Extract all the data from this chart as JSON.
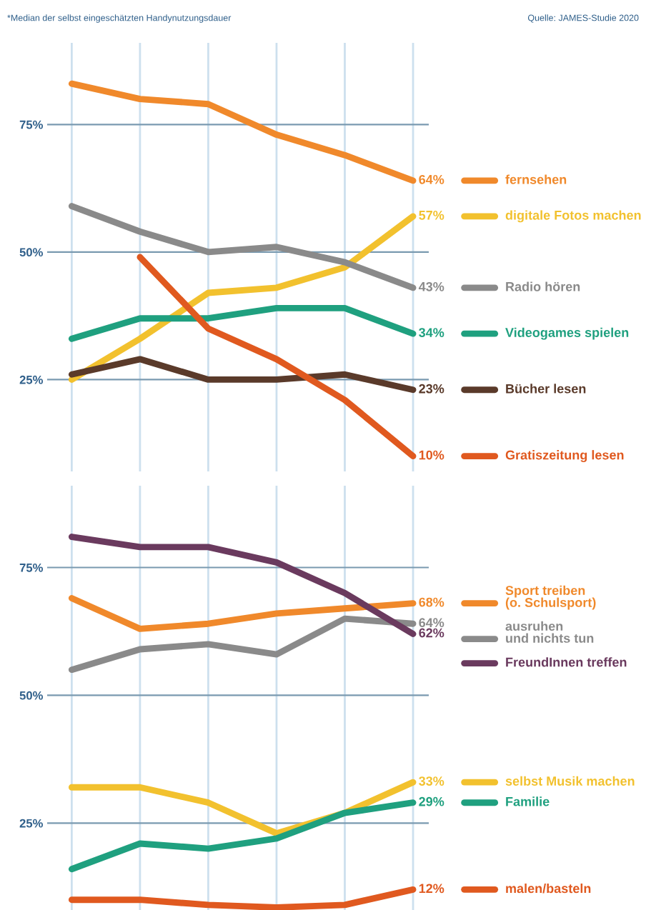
{
  "chart_data": [
    {
      "type": "line",
      "annotations": [
        "*Median der selbst eingeschätzten Handynutzungsdauer",
        "Quelle: JAMES-Studie 2020"
      ],
      "categories": [
        null,
        null,
        null,
        null,
        null,
        null
      ],
      "ylim": [
        7,
        91
      ],
      "yticks": [
        {
          "value": 25,
          "label": "25%"
        },
        {
          "value": 50,
          "label": "50%"
        },
        {
          "value": 75,
          "label": "75%"
        }
      ],
      "grid": true,
      "tick_labels": "y",
      "legend": "right",
      "marker": "none",
      "line_style": "solid",
      "series": [
        {
          "name": "fernsehen",
          "color": "#f0892b",
          "values": [
            83,
            80,
            79,
            73,
            69,
            64
          ],
          "value_labels": [
            null,
            null,
            null,
            null,
            null,
            "64%"
          ]
        },
        {
          "name": "digitale Fotos machen",
          "color": "#f2c12e",
          "values": [
            25,
            33,
            42,
            43,
            47,
            57
          ],
          "value_labels": [
            null,
            null,
            null,
            null,
            null,
            "57%"
          ]
        },
        {
          "name": "Radio hören",
          "color": "#8a8a8a",
          "values": [
            59,
            54,
            50,
            51,
            48,
            43
          ],
          "value_labels": [
            null,
            null,
            null,
            null,
            null,
            "43%"
          ]
        },
        {
          "name": "Videogames spielen",
          "color": "#1fa07f",
          "values": [
            33,
            37,
            37,
            39,
            39,
            34
          ],
          "value_labels": [
            null,
            null,
            null,
            null,
            null,
            "34%"
          ]
        },
        {
          "name": "Bücher lesen",
          "color": "#5a3a2a",
          "values": [
            26,
            29,
            25,
            25,
            26,
            23
          ],
          "value_labels": [
            null,
            null,
            null,
            null,
            null,
            "23%"
          ]
        },
        {
          "name": "Gratiszeitung lesen",
          "color": "#e0591f",
          "values": [
            null,
            49,
            35,
            29,
            21,
            10
          ],
          "value_labels": [
            null,
            null,
            null,
            null,
            null,
            "10%"
          ]
        }
      ]
    },
    {
      "type": "line",
      "categories": [
        null,
        null,
        null,
        null,
        null,
        null
      ],
      "ylim": [
        8,
        91
      ],
      "yticks": [
        {
          "value": 25,
          "label": "25%"
        },
        {
          "value": 50,
          "label": "50%"
        },
        {
          "value": 75,
          "label": "75%"
        }
      ],
      "grid": true,
      "tick_labels": "y",
      "legend": "right",
      "marker": "none",
      "line_style": "solid",
      "series": [
        {
          "name": "Sport treiben\n(o. Schulsport)",
          "color": "#f0892b",
          "values": [
            69,
            63,
            64,
            66,
            67,
            68
          ],
          "value_labels": [
            null,
            null,
            null,
            null,
            null,
            "68%"
          ]
        },
        {
          "name": "ausruhen\nund nichts tun",
          "color": "#8a8a8a",
          "values": [
            55,
            59,
            60,
            58,
            65,
            64
          ],
          "value_labels": [
            null,
            null,
            null,
            null,
            null,
            "64%"
          ]
        },
        {
          "name": "FreundInnen treffen",
          "color": "#6a3a5e",
          "values": [
            81,
            79,
            79,
            76,
            70,
            62
          ],
          "value_labels": [
            null,
            null,
            null,
            null,
            null,
            "62%"
          ]
        },
        {
          "name": "selbst Musik machen",
          "color": "#f2c12e",
          "values": [
            32,
            32,
            29,
            23,
            27,
            33
          ],
          "value_labels": [
            null,
            null,
            null,
            null,
            null,
            "33%"
          ]
        },
        {
          "name": "Familie",
          "color": "#1fa07f",
          "values": [
            16,
            21,
            20,
            22,
            27,
            29
          ],
          "value_labels": [
            null,
            null,
            null,
            null,
            null,
            "29%"
          ]
        },
        {
          "name": "malen/basteln",
          "color": "#e0591f",
          "values": [
            10,
            10,
            9,
            8.5,
            9,
            12
          ],
          "value_labels": [
            null,
            null,
            null,
            null,
            null,
            "12%"
          ]
        }
      ]
    }
  ]
}
